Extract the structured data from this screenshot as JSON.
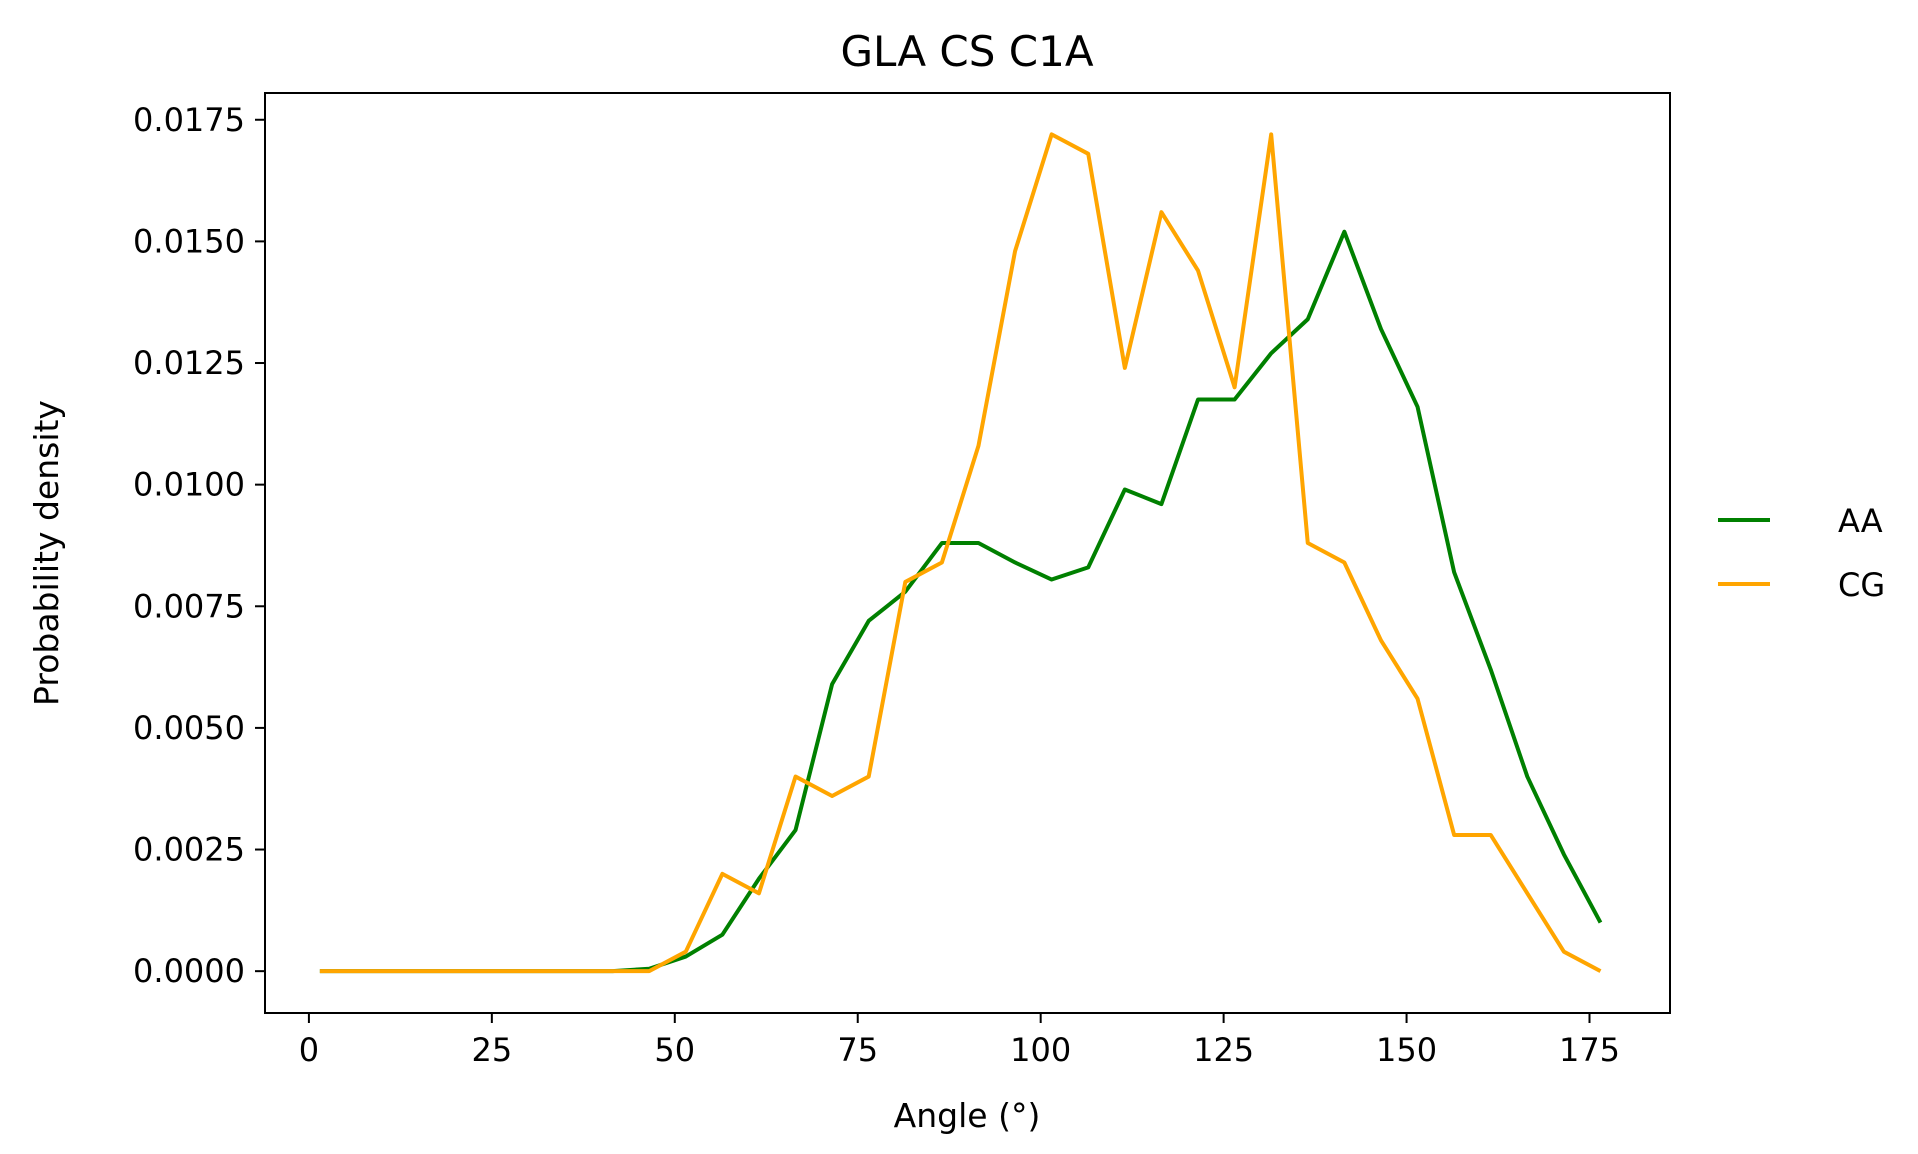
{
  "chart_data": {
    "type": "line",
    "title": "GLA CS C1A",
    "xlabel": "Angle (°)",
    "ylabel": "Probability density",
    "xlim": [
      -6,
      186
    ],
    "ylim": [
      -0.00086,
      0.01805
    ],
    "x_ticks": [
      0,
      25,
      50,
      75,
      100,
      125,
      150,
      175
    ],
    "x_tick_labels": [
      "0",
      "25",
      "50",
      "75",
      "100",
      "125",
      "150",
      "175"
    ],
    "y_ticks": [
      0.0,
      0.0025,
      0.005,
      0.0075,
      0.01,
      0.0125,
      0.015,
      0.0175
    ],
    "y_tick_labels": [
      "0.0000",
      "0.0025",
      "0.0050",
      "0.0075",
      "0.0100",
      "0.0125",
      "0.0150",
      "0.0175"
    ],
    "grid": false,
    "legend_position": "right-outside",
    "x": [
      1.5,
      6.5,
      11.5,
      16.5,
      21.5,
      26.5,
      31.5,
      36.5,
      41.5,
      46.5,
      51.5,
      56.5,
      61.5,
      66.5,
      71.5,
      76.5,
      81.5,
      86.5,
      91.5,
      96.5,
      101.5,
      106.5,
      111.5,
      116.5,
      121.5,
      126.5,
      131.5,
      136.5,
      141.5,
      146.5,
      151.5,
      156.5,
      161.5,
      166.5,
      171.5,
      176.5
    ],
    "series": [
      {
        "name": "AA",
        "color": "#008000",
        "values": [
          0.0,
          0.0,
          0.0,
          0.0,
          0.0,
          0.0,
          0.0,
          0.0,
          0.0,
          5e-05,
          0.0003,
          0.00075,
          0.0019,
          0.0029,
          0.0059,
          0.0072,
          0.0078,
          0.0088,
          0.0088,
          0.0084,
          0.00805,
          0.0083,
          0.0099,
          0.0096,
          0.01175,
          0.01175,
          0.0127,
          0.0134,
          0.0152,
          0.0132,
          0.0116,
          0.0082,
          0.0062,
          0.004,
          0.0024,
          0.001
        ]
      },
      {
        "name": "CG",
        "color": "#ffa500",
        "values": [
          0.0,
          0.0,
          0.0,
          0.0,
          0.0,
          0.0,
          0.0,
          0.0,
          0.0,
          0.0,
          0.0004,
          0.002,
          0.0016,
          0.004,
          0.0036,
          0.004,
          0.008,
          0.0084,
          0.0108,
          0.0148,
          0.0172,
          0.0168,
          0.0124,
          0.0156,
          0.0144,
          0.012,
          0.0172,
          0.0088,
          0.0084,
          0.0068,
          0.0056,
          0.0028,
          0.0028,
          0.0016,
          0.0004,
          0.0
        ]
      }
    ]
  }
}
